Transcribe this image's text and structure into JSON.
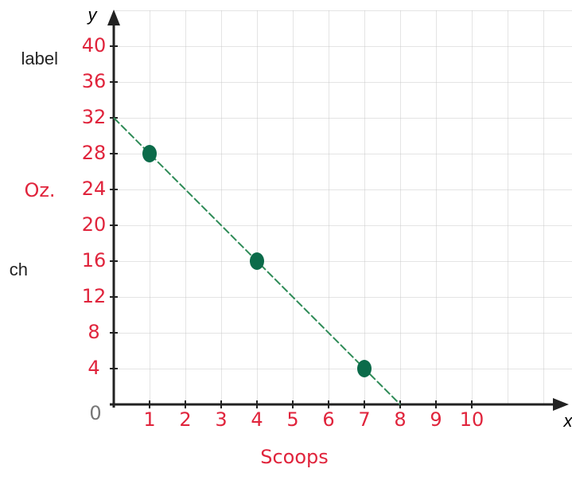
{
  "chart_data": {
    "type": "scatter",
    "x_axis_letter": "x",
    "y_axis_letter": "y",
    "x_label": "Scoops",
    "y_label": "Oz.",
    "origin_label": "0",
    "side_texts": [
      "label",
      "ch"
    ],
    "x": [
      1,
      4,
      7
    ],
    "values": [
      28,
      16,
      4
    ],
    "color": "#0b6b4a",
    "trend": {
      "x": [
        0,
        8
      ],
      "values": [
        32,
        0
      ],
      "color": "#2e8b57"
    },
    "xlim": [
      0,
      12.5
    ],
    "ylim": [
      0,
      44
    ],
    "xticks": [
      1,
      2,
      3,
      4,
      5,
      6,
      7,
      8,
      9,
      10
    ],
    "yticks": [
      4,
      8,
      12,
      16,
      20,
      24,
      28,
      32,
      36,
      40
    ],
    "tick_color": "#e0243c"
  }
}
